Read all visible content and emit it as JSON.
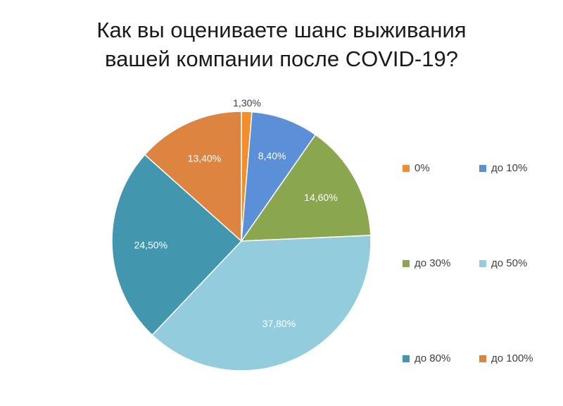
{
  "chart_data": {
    "type": "pie",
    "title_lines": [
      "Как вы оцениваете шанс выживания",
      "вашей компании после COVID-19?"
    ],
    "slices": [
      {
        "name": "0%",
        "value": 1.3,
        "label": "1,30%",
        "color": "#F28E2B"
      },
      {
        "name": "до 10%",
        "value": 8.4,
        "label": "8,40%",
        "color": "#5B8FD8"
      },
      {
        "name": "до 30%",
        "value": 14.6,
        "label": "14,60%",
        "color": "#8AA64E"
      },
      {
        "name": "до 50%",
        "value": 37.8,
        "label": "37,80%",
        "color": "#93CDDD"
      },
      {
        "name": "до 80%",
        "value": 24.5,
        "label": "24,50%",
        "color": "#4297AF"
      },
      {
        "name": "до 100%",
        "value": 13.4,
        "label": "13,40%",
        "color": "#DC8440"
      }
    ],
    "start_angle_deg": 0,
    "direction": "clockwise",
    "legend_position": "right"
  }
}
